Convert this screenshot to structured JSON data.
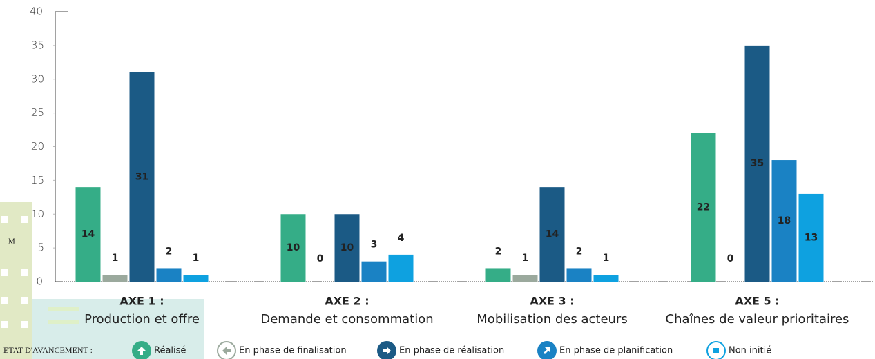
{
  "chart_data": {
    "type": "bar",
    "categories": [
      "AXE 1 :",
      "AXE 2 :",
      "AXE 3 :",
      "AXE 5 :"
    ],
    "category_descriptions": [
      "Production et offre",
      "Demande et consommation",
      "Mobilisation des acteurs",
      "Chaînes de valeur prioritaires"
    ],
    "series": [
      {
        "name": "Réalisé",
        "color": "#35ad87",
        "values": [
          14,
          10,
          2,
          22
        ]
      },
      {
        "name": "En phase de finalisation",
        "color": "#9ba99d",
        "values": [
          1,
          0,
          1,
          0
        ]
      },
      {
        "name": "En phase de réalisation",
        "color": "#1b5a85",
        "values": [
          31,
          10,
          14,
          35
        ]
      },
      {
        "name": "En phase de planification",
        "color": "#1a82c4",
        "values": [
          2,
          3,
          2,
          18
        ]
      },
      {
        "name": "Non initié",
        "color": "#0ea1e0",
        "values": [
          1,
          4,
          1,
          13
        ]
      }
    ],
    "ylim": [
      0,
      40
    ],
    "yticks": [
      0,
      5,
      10,
      15,
      20,
      25,
      30,
      35,
      40
    ],
    "legend_title": "ETAT D'AVANCEMENT :",
    "overlay_text": "M"
  }
}
